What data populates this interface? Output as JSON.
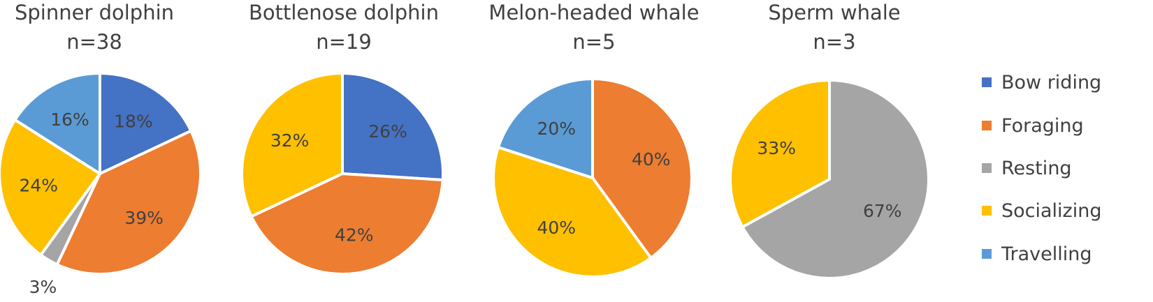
{
  "chart_data": [
    {
      "type": "pie",
      "title": "Spinner dolphin",
      "subtitle": "n=38",
      "slices": [
        {
          "category": "Bow riding",
          "value": 18,
          "label": "18%"
        },
        {
          "category": "Foraging",
          "value": 39,
          "label": "39%"
        },
        {
          "category": "Resting",
          "value": 3,
          "label": "3%"
        },
        {
          "category": "Socializing",
          "value": 24,
          "label": "24%"
        },
        {
          "category": "Travelling",
          "value": 16,
          "label": "16%"
        }
      ]
    },
    {
      "type": "pie",
      "title": "Bottlenose dolphin",
      "subtitle": "n=19",
      "slices": [
        {
          "category": "Bow riding",
          "value": 26,
          "label": "26%"
        },
        {
          "category": "Foraging",
          "value": 42,
          "label": "42%"
        },
        {
          "category": "Socializing",
          "value": 32,
          "label": "32%"
        }
      ]
    },
    {
      "type": "pie",
      "title": "Melon-headed whale",
      "subtitle": "n=5",
      "slices": [
        {
          "category": "Foraging",
          "value": 40,
          "label": "40%"
        },
        {
          "category": "Socializing",
          "value": 40,
          "label": "40%"
        },
        {
          "category": "Travelling",
          "value": 20,
          "label": "20%"
        }
      ]
    },
    {
      "type": "pie",
      "title": "Sperm whale",
      "subtitle": "n=3",
      "slices": [
        {
          "category": "Resting",
          "value": 67,
          "label": "67%"
        },
        {
          "category": "Socializing",
          "value": 33,
          "label": "33%"
        }
      ]
    }
  ],
  "legend": {
    "placement": "right",
    "items": [
      {
        "label": "Bow riding",
        "color": "#4472C4"
      },
      {
        "label": "Foraging",
        "color": "#ED7D31"
      },
      {
        "label": "Resting",
        "color": "#A5A5A5"
      },
      {
        "label": "Socializing",
        "color": "#FFC000"
      },
      {
        "label": "Travelling",
        "color": "#5B9BD5"
      }
    ]
  }
}
